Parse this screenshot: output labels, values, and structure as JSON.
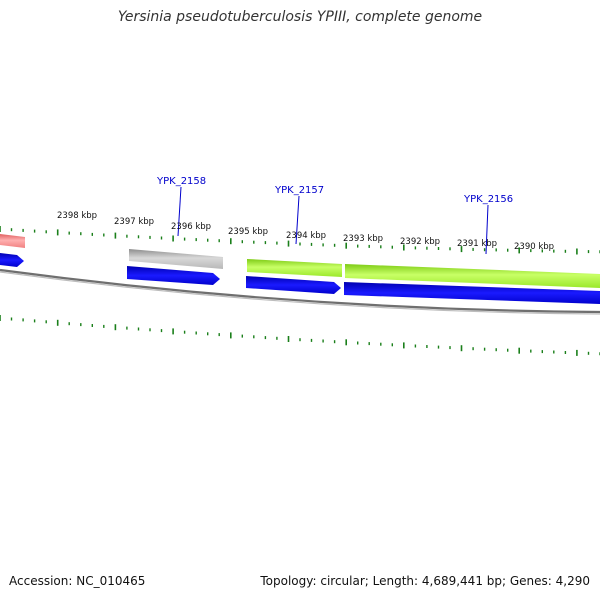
{
  "title": "Yersinia pseudotuberculosis YPIII, complete genome",
  "footer": {
    "accession": "Accession: NC_010465",
    "topology": "Topology: circular; Length: 4,689,441 bp; Genes: 4,290"
  },
  "tick_labels": [
    "2398 kbp",
    "2397 kbp",
    "2396 kbp",
    "2395 kbp",
    "2394 kbp",
    "2393 kbp",
    "2392 kbp",
    "2391 kbp",
    "2390 kbp"
  ],
  "gene_labels": [
    "YPK_2158",
    "YPK_2157",
    "YPK_2156"
  ],
  "colors": {
    "cds_forward": "#0000e6",
    "feature_green": "#99ee22",
    "feature_gray": "#b0b0b0",
    "feature_pink": "#f08080",
    "backbone": "#808080",
    "ticks": "#1a7f1a",
    "label_blue": "#0000cc"
  }
}
